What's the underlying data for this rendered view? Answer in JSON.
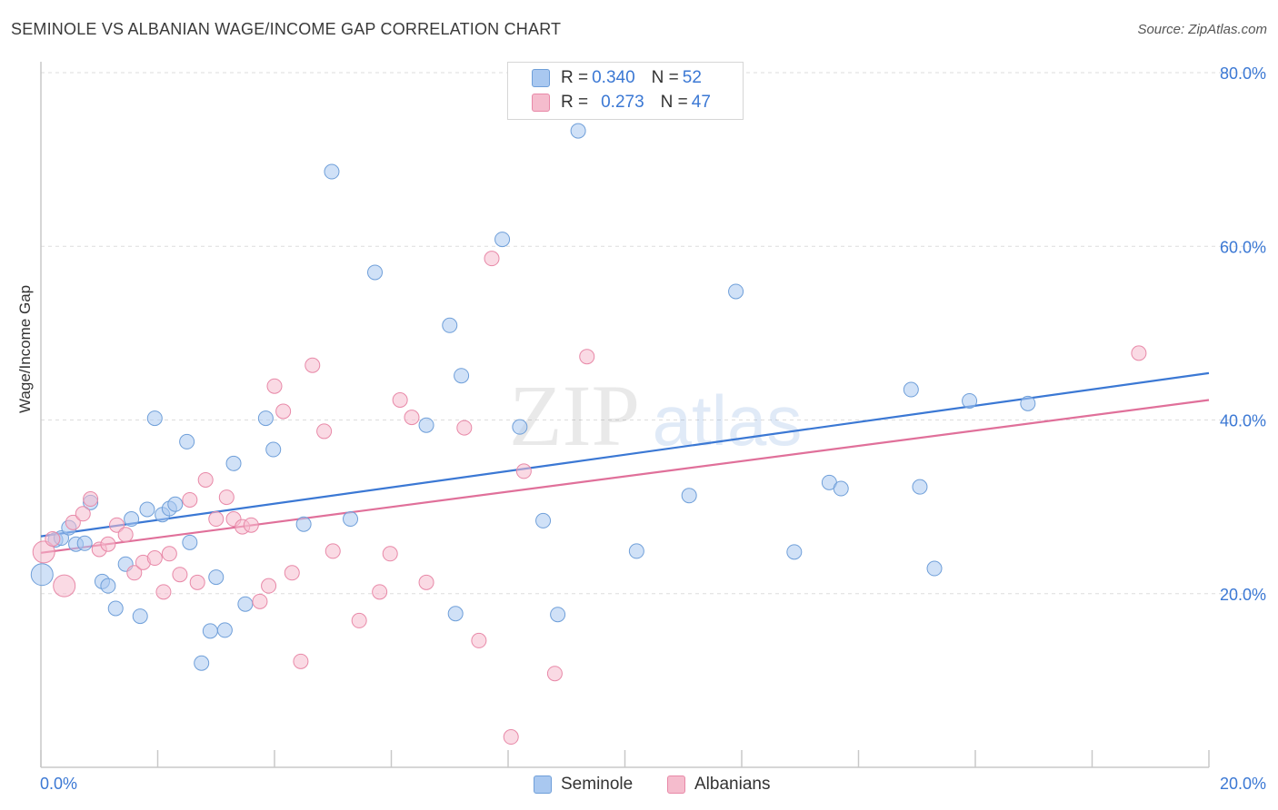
{
  "title": "SEMINOLE VS ALBANIAN WAGE/INCOME GAP CORRELATION CHART",
  "source": "Source: ZipAtlas.com",
  "watermark": {
    "zip": "ZIP",
    "atlas": "atlas"
  },
  "legend": {
    "rows": [
      {
        "r_label": "R =",
        "r_value": "0.340",
        "n_label": "N =",
        "n_value": "52"
      },
      {
        "r_label": "R =",
        "r_value": "0.273",
        "n_label": "N =",
        "n_value": "47"
      }
    ]
  },
  "colors": {
    "seminole_fill": "#a9c8f0",
    "seminole_stroke": "#6f9fd9",
    "seminole_line": "#3b78d4",
    "albanian_fill": "#f5bccd",
    "albanian_stroke": "#e889a8",
    "albanian_line": "#e0709a",
    "tick_label": "#3b78d4",
    "grid": "#dddddd"
  },
  "chart_data": {
    "type": "scatter",
    "title": "SEMINOLE VS ALBANIAN WAGE/INCOME GAP CORRELATION CHART",
    "xlabel": "",
    "ylabel": "Wage/Income Gap",
    "xlim": [
      0,
      20
    ],
    "ylim": [
      0,
      80
    ],
    "x_tick_labels": [
      "0.0%",
      "20.0%"
    ],
    "y_ticks": [
      20,
      40,
      60,
      80
    ],
    "y_tick_labels": [
      "20.0%",
      "40.0%",
      "60.0%",
      "80.0%"
    ],
    "series": [
      {
        "name": "Seminole",
        "r": 0.34,
        "n": 52,
        "trend": {
          "x": [
            0,
            20
          ],
          "y": [
            26.6,
            45.4
          ]
        },
        "points": [
          {
            "x": 0.02,
            "y": 22.2,
            "big": true
          },
          {
            "x": 0.25,
            "y": 26.2
          },
          {
            "x": 0.35,
            "y": 26.4
          },
          {
            "x": 0.48,
            "y": 27.6
          },
          {
            "x": 0.6,
            "y": 25.7
          },
          {
            "x": 0.75,
            "y": 25.8
          },
          {
            "x": 0.85,
            "y": 30.5
          },
          {
            "x": 1.05,
            "y": 21.4
          },
          {
            "x": 1.15,
            "y": 20.9
          },
          {
            "x": 1.28,
            "y": 18.3
          },
          {
            "x": 1.45,
            "y": 23.4
          },
          {
            "x": 1.55,
            "y": 28.6
          },
          {
            "x": 1.7,
            "y": 17.4
          },
          {
            "x": 1.82,
            "y": 29.7
          },
          {
            "x": 1.95,
            "y": 40.2
          },
          {
            "x": 2.08,
            "y": 29.1
          },
          {
            "x": 2.2,
            "y": 29.8
          },
          {
            "x": 2.3,
            "y": 30.3
          },
          {
            "x": 2.5,
            "y": 37.5
          },
          {
            "x": 2.55,
            "y": 25.9
          },
          {
            "x": 2.75,
            "y": 12.0
          },
          {
            "x": 2.9,
            "y": 15.7
          },
          {
            "x": 3.0,
            "y": 21.9
          },
          {
            "x": 3.15,
            "y": 15.8
          },
          {
            "x": 3.3,
            "y": 35.0
          },
          {
            "x": 3.5,
            "y": 18.8
          },
          {
            "x": 3.85,
            "y": 40.2
          },
          {
            "x": 3.98,
            "y": 36.6
          },
          {
            "x": 4.5,
            "y": 28.0
          },
          {
            "x": 4.98,
            "y": 68.6
          },
          {
            "x": 5.3,
            "y": 28.6
          },
          {
            "x": 5.72,
            "y": 57.0
          },
          {
            "x": 6.6,
            "y": 39.4
          },
          {
            "x": 7.0,
            "y": 50.9
          },
          {
            "x": 7.1,
            "y": 17.7
          },
          {
            "x": 7.2,
            "y": 45.1
          },
          {
            "x": 7.9,
            "y": 60.8
          },
          {
            "x": 8.2,
            "y": 39.2
          },
          {
            "x": 8.6,
            "y": 28.4
          },
          {
            "x": 8.85,
            "y": 17.6
          },
          {
            "x": 9.2,
            "y": 73.3
          },
          {
            "x": 10.2,
            "y": 24.9
          },
          {
            "x": 11.1,
            "y": 31.3
          },
          {
            "x": 11.9,
            "y": 54.8
          },
          {
            "x": 12.9,
            "y": 24.8
          },
          {
            "x": 13.5,
            "y": 32.8
          },
          {
            "x": 13.7,
            "y": 32.1
          },
          {
            "x": 14.9,
            "y": 43.5
          },
          {
            "x": 15.05,
            "y": 32.3
          },
          {
            "x": 15.3,
            "y": 22.9
          },
          {
            "x": 15.9,
            "y": 42.2
          },
          {
            "x": 16.9,
            "y": 41.9
          }
        ]
      },
      {
        "name": "Albanians",
        "r": 0.273,
        "n": 47,
        "trend": {
          "x": [
            0,
            20
          ],
          "y": [
            24.7,
            42.3
          ]
        },
        "points": [
          {
            "x": 0.05,
            "y": 24.8,
            "big": true
          },
          {
            "x": 0.2,
            "y": 26.3
          },
          {
            "x": 0.4,
            "y": 20.9,
            "big": true
          },
          {
            "x": 0.55,
            "y": 28.2
          },
          {
            "x": 0.72,
            "y": 29.2
          },
          {
            "x": 0.85,
            "y": 30.9
          },
          {
            "x": 1.0,
            "y": 25.1
          },
          {
            "x": 1.15,
            "y": 25.7
          },
          {
            "x": 1.3,
            "y": 27.9
          },
          {
            "x": 1.45,
            "y": 26.8
          },
          {
            "x": 1.6,
            "y": 22.4
          },
          {
            "x": 1.75,
            "y": 23.6
          },
          {
            "x": 1.95,
            "y": 24.1
          },
          {
            "x": 2.1,
            "y": 20.2
          },
          {
            "x": 2.2,
            "y": 24.6
          },
          {
            "x": 2.38,
            "y": 22.2
          },
          {
            "x": 2.55,
            "y": 30.8
          },
          {
            "x": 2.68,
            "y": 21.3
          },
          {
            "x": 2.82,
            "y": 33.1
          },
          {
            "x": 3.0,
            "y": 28.6
          },
          {
            "x": 3.18,
            "y": 31.1
          },
          {
            "x": 3.3,
            "y": 28.6
          },
          {
            "x": 3.45,
            "y": 27.7
          },
          {
            "x": 3.6,
            "y": 27.9
          },
          {
            "x": 3.75,
            "y": 19.1
          },
          {
            "x": 3.9,
            "y": 20.9
          },
          {
            "x": 4.0,
            "y": 43.9
          },
          {
            "x": 4.15,
            "y": 41.0
          },
          {
            "x": 4.3,
            "y": 22.4
          },
          {
            "x": 4.45,
            "y": 12.2
          },
          {
            "x": 4.65,
            "y": 46.3
          },
          {
            "x": 4.85,
            "y": 38.7
          },
          {
            "x": 5.0,
            "y": 24.9
          },
          {
            "x": 5.45,
            "y": 16.9
          },
          {
            "x": 5.8,
            "y": 20.2
          },
          {
            "x": 5.98,
            "y": 24.6
          },
          {
            "x": 6.15,
            "y": 42.3
          },
          {
            "x": 6.35,
            "y": 40.3
          },
          {
            "x": 6.6,
            "y": 21.3
          },
          {
            "x": 7.25,
            "y": 39.1
          },
          {
            "x": 7.5,
            "y": 14.6
          },
          {
            "x": 7.72,
            "y": 58.6
          },
          {
            "x": 8.05,
            "y": 3.5
          },
          {
            "x": 8.27,
            "y": 34.1
          },
          {
            "x": 8.8,
            "y": 10.8
          },
          {
            "x": 9.35,
            "y": 47.3
          },
          {
            "x": 18.8,
            "y": 47.7
          }
        ]
      }
    ]
  }
}
